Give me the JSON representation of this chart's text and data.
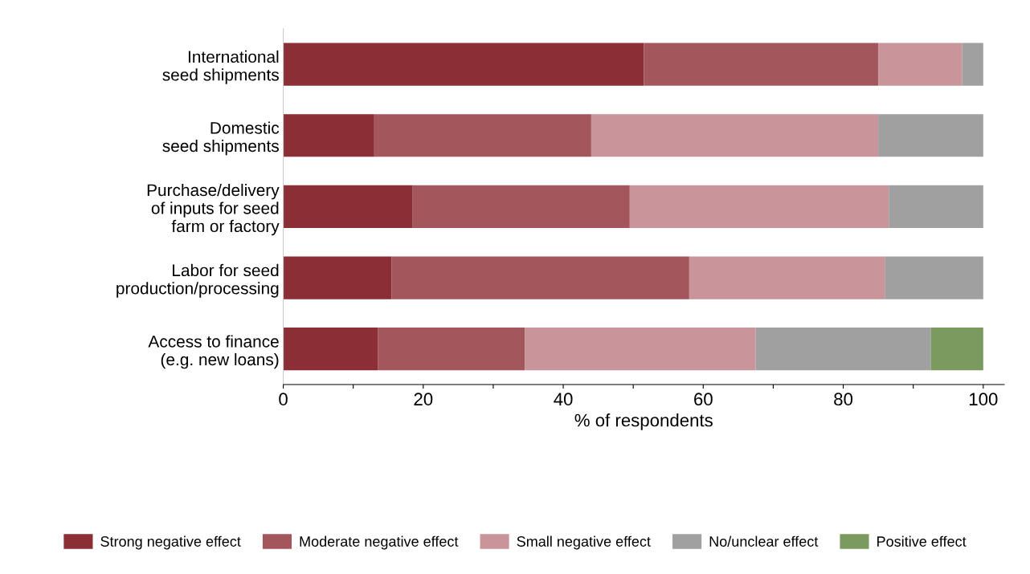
{
  "chart_data": {
    "type": "bar",
    "orientation": "horizontal",
    "stacked": true,
    "xlabel": "% of respondents",
    "categories": [
      "International\nseed shipments",
      "Domestic\nseed shipments",
      "Purchase/delivery\nof inputs for seed\nfarm or factory",
      "Labor for seed\nproduction/processing",
      "Access to finance\n(e.g. new loans)"
    ],
    "series": [
      {
        "name": "Strong negative effect",
        "color": "#8b2e35",
        "values": [
          51.5,
          13,
          18.5,
          15.5,
          13.5
        ]
      },
      {
        "name": "Moderate negative effect",
        "color": "#a3575c",
        "values": [
          33.5,
          31,
          31,
          42.5,
          21
        ]
      },
      {
        "name": "Small negative effect",
        "color": "#c9959a",
        "values": [
          12,
          41,
          37,
          28,
          33
        ]
      },
      {
        "name": "No/unclear effect",
        "color": "#a0a0a0",
        "values": [
          3,
          15,
          13.5,
          14,
          25
        ]
      },
      {
        "name": "Positive effect",
        "color": "#7a9a5f",
        "values": [
          0,
          0,
          0,
          0,
          7.5
        ]
      }
    ],
    "xlim": [
      0,
      103
    ],
    "xticks": [
      0,
      {
        "value": 10,
        "label": null
      },
      20,
      {
        "value": 30,
        "label": null
      },
      40,
      {
        "value": 50,
        "label": null
      },
      60,
      {
        "value": 70,
        "label": null
      },
      80,
      {
        "value": 90,
        "label": null
      },
      100
    ],
    "grid": false,
    "legend": "bottom"
  }
}
